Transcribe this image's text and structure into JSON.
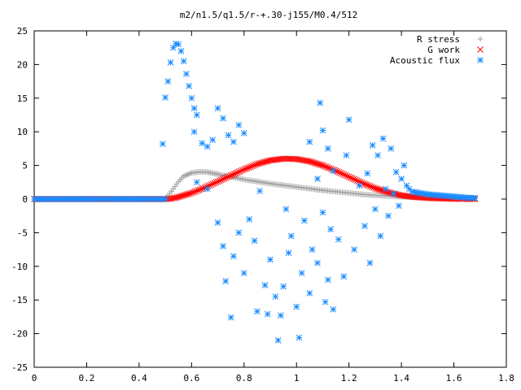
{
  "chart_data": {
    "type": "scatter",
    "title": "m2/n1.5/q1.5/r-+.30-j155/M0.4/512",
    "xlim": [
      0,
      1.8
    ],
    "ylim": [
      -25,
      25
    ],
    "x_ticks": [
      "0",
      "0.2",
      "0.4",
      "0.6",
      "0.8",
      "1",
      "1.2",
      "1.4",
      "1.6",
      "1.8"
    ],
    "y_ticks": [
      "25",
      "20",
      "15",
      "10",
      "5",
      "0",
      "-5",
      "-10",
      "-15",
      "-20",
      "-25"
    ],
    "grid": false,
    "legend_position": "top-right",
    "series": [
      {
        "name": "R stress",
        "color": "#a0a0a0",
        "marker": "plus",
        "points": [
          [
            0.0,
            0.0
          ],
          [
            0.25,
            0.0
          ],
          [
            0.5,
            0.0
          ],
          [
            0.51,
            0.5
          ],
          [
            0.53,
            1.5
          ],
          [
            0.55,
            2.6
          ],
          [
            0.57,
            3.4
          ],
          [
            0.6,
            3.9
          ],
          [
            0.63,
            4.05
          ],
          [
            0.66,
            4.0
          ],
          [
            0.7,
            3.7
          ],
          [
            0.75,
            3.3
          ],
          [
            0.8,
            2.9
          ],
          [
            0.85,
            2.6
          ],
          [
            0.9,
            2.3
          ],
          [
            0.95,
            2.05
          ],
          [
            1.0,
            1.8
          ],
          [
            1.05,
            1.55
          ],
          [
            1.1,
            1.3
          ],
          [
            1.15,
            1.1
          ],
          [
            1.2,
            0.9
          ],
          [
            1.25,
            0.7
          ],
          [
            1.3,
            0.55
          ],
          [
            1.35,
            0.45
          ],
          [
            1.4,
            0.35
          ],
          [
            1.45,
            0.3
          ],
          [
            1.5,
            0.25
          ],
          [
            1.55,
            0.2
          ],
          [
            1.6,
            0.15
          ],
          [
            1.65,
            0.1
          ],
          [
            1.68,
            0.1
          ]
        ]
      },
      {
        "name": "G work",
        "color": "#ff0000",
        "marker": "cross",
        "points": [
          [
            0.0,
            0.0
          ],
          [
            0.25,
            0.0
          ],
          [
            0.5,
            0.0
          ],
          [
            0.52,
            0.05
          ],
          [
            0.55,
            0.3
          ],
          [
            0.6,
            0.9
          ],
          [
            0.65,
            1.7
          ],
          [
            0.7,
            2.6
          ],
          [
            0.75,
            3.5
          ],
          [
            0.8,
            4.4
          ],
          [
            0.85,
            5.2
          ],
          [
            0.9,
            5.75
          ],
          [
            0.95,
            6.0
          ],
          [
            1.0,
            5.95
          ],
          [
            1.05,
            5.6
          ],
          [
            1.1,
            5.0
          ],
          [
            1.15,
            4.2
          ],
          [
            1.2,
            3.3
          ],
          [
            1.25,
            2.4
          ],
          [
            1.3,
            1.6
          ],
          [
            1.35,
            1.0
          ],
          [
            1.4,
            0.55
          ],
          [
            1.45,
            0.3
          ],
          [
            1.5,
            0.15
          ],
          [
            1.55,
            0.08
          ],
          [
            1.6,
            0.04
          ],
          [
            1.65,
            0.02
          ],
          [
            1.68,
            0.01
          ]
        ]
      },
      {
        "name": "Acoustic flux",
        "color": "#1a8cff",
        "marker": "star",
        "points": [
          [
            0.0,
            0.0
          ],
          [
            0.1,
            0.0
          ],
          [
            0.2,
            0.0
          ],
          [
            0.3,
            0.0
          ],
          [
            0.4,
            0.0
          ],
          [
            0.5,
            0.0
          ],
          [
            0.49,
            8.2
          ],
          [
            0.5,
            15.1
          ],
          [
            0.51,
            17.5
          ],
          [
            0.52,
            20.3
          ],
          [
            0.53,
            22.5
          ],
          [
            0.54,
            23.1
          ],
          [
            0.55,
            23.0
          ],
          [
            0.56,
            22.0
          ],
          [
            0.57,
            20.5
          ],
          [
            0.58,
            18.6
          ],
          [
            0.59,
            16.8
          ],
          [
            0.6,
            15.0
          ],
          [
            0.61,
            13.5
          ],
          [
            0.62,
            12.5
          ],
          [
            0.61,
            10.0
          ],
          [
            0.64,
            8.3
          ],
          [
            0.66,
            7.8
          ],
          [
            0.68,
            8.8
          ],
          [
            0.7,
            13.5
          ],
          [
            0.72,
            12.0
          ],
          [
            0.74,
            9.5
          ],
          [
            0.76,
            8.5
          ],
          [
            0.78,
            11.0
          ],
          [
            0.8,
            9.8
          ],
          [
            0.62,
            2.5
          ],
          [
            0.66,
            1.5
          ],
          [
            0.7,
            -3.5
          ],
          [
            0.72,
            -7.0
          ],
          [
            0.73,
            -12.2
          ],
          [
            0.75,
            -17.6
          ],
          [
            0.76,
            -8.5
          ],
          [
            0.78,
            -5.0
          ],
          [
            0.8,
            -11.0
          ],
          [
            0.82,
            -3.0
          ],
          [
            0.84,
            -6.2
          ],
          [
            0.85,
            -16.7
          ],
          [
            0.86,
            1.2
          ],
          [
            0.88,
            -12.8
          ],
          [
            0.89,
            -17.1
          ],
          [
            0.9,
            -9.0
          ],
          [
            0.92,
            -14.5
          ],
          [
            0.93,
            -21.0
          ],
          [
            0.94,
            -17.3
          ],
          [
            0.95,
            -13.0
          ],
          [
            0.96,
            -1.5
          ],
          [
            0.97,
            -8.0
          ],
          [
            0.98,
            -5.5
          ],
          [
            1.0,
            -16.0
          ],
          [
            1.01,
            -20.6
          ],
          [
            1.02,
            -11.0
          ],
          [
            1.03,
            -3.2
          ],
          [
            1.05,
            -14.0
          ],
          [
            1.06,
            -7.5
          ],
          [
            1.08,
            -9.5
          ],
          [
            1.1,
            -2.0
          ],
          [
            1.11,
            -15.3
          ],
          [
            1.12,
            -12.0
          ],
          [
            1.13,
            -4.5
          ],
          [
            1.14,
            -16.4
          ],
          [
            1.05,
            8.5
          ],
          [
            1.08,
            3.0
          ],
          [
            1.09,
            14.3
          ],
          [
            1.1,
            10.2
          ],
          [
            1.12,
            7.5
          ],
          [
            1.14,
            4.2
          ],
          [
            1.16,
            -6.0
          ],
          [
            1.18,
            -11.5
          ],
          [
            1.19,
            6.5
          ],
          [
            1.2,
            11.8
          ],
          [
            1.22,
            -7.5
          ],
          [
            1.24,
            2.0
          ],
          [
            1.26,
            -4.0
          ],
          [
            1.27,
            3.8
          ],
          [
            1.28,
            -9.5
          ],
          [
            1.29,
            8.0
          ],
          [
            1.3,
            -1.5
          ],
          [
            1.31,
            6.5
          ],
          [
            1.32,
            -5.5
          ],
          [
            1.33,
            9.0
          ],
          [
            1.34,
            1.5
          ],
          [
            1.35,
            -2.5
          ],
          [
            1.36,
            7.5
          ],
          [
            1.37,
            0.8
          ],
          [
            1.38,
            4.0
          ],
          [
            1.39,
            -1.0
          ],
          [
            1.4,
            3.0
          ],
          [
            1.41,
            5.0
          ],
          [
            1.42,
            2.0
          ],
          [
            1.43,
            1.5
          ],
          [
            1.44,
            1.1
          ],
          [
            1.47,
            0.9
          ],
          [
            1.5,
            0.7
          ],
          [
            1.53,
            0.6
          ],
          [
            1.56,
            0.5
          ],
          [
            1.59,
            0.4
          ],
          [
            1.62,
            0.3
          ],
          [
            1.65,
            0.2
          ],
          [
            1.68,
            0.15
          ]
        ]
      }
    ]
  }
}
